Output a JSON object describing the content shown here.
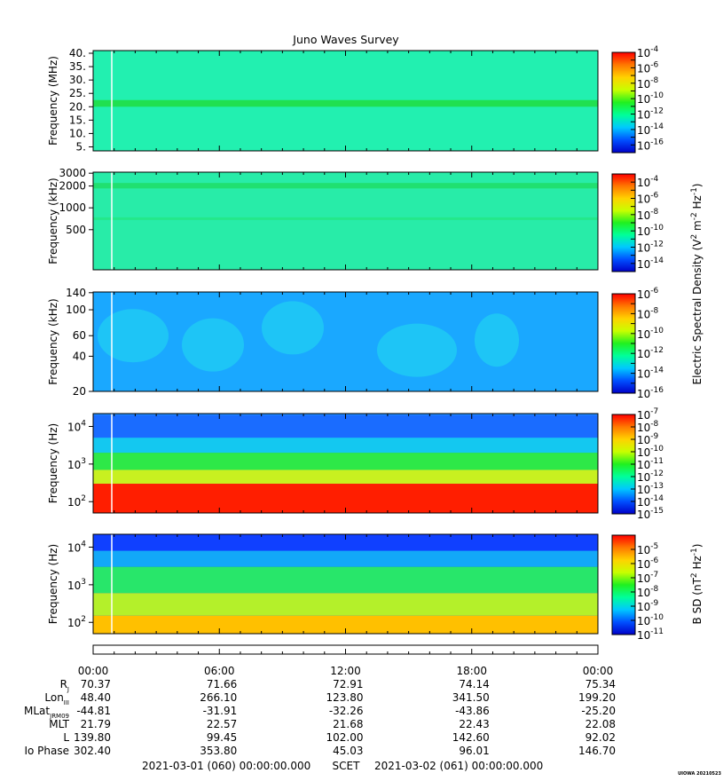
{
  "title": "Juno Waves Survey",
  "colors": {
    "colormap": [
      "#0000c8",
      "#0050ff",
      "#00c8ff",
      "#00ff9a",
      "#20f020",
      "#c8ff00",
      "#ffd200",
      "#ff7800",
      "#ff0000"
    ]
  },
  "chart_data": [
    {
      "type": "heatmap",
      "ylabel": "Frequency (MHz)",
      "yscale": "linear",
      "ylim": [
        3.5,
        41
      ],
      "yticks": [
        {
          "value": 5,
          "label": "5."
        },
        {
          "value": 10,
          "label": "10."
        },
        {
          "value": 15,
          "label": "15."
        },
        {
          "value": 20,
          "label": "20."
        },
        {
          "value": 25,
          "label": "25."
        },
        {
          "value": 30,
          "label": "30."
        },
        {
          "value": 35,
          "label": "35."
        },
        {
          "value": 40,
          "label": "40."
        }
      ],
      "colorbar": {
        "log_range": [
          -17,
          -4
        ],
        "labels": [
          {
            "exp": -4,
            "base": "10",
            "sup": "-4"
          },
          {
            "exp": -6,
            "base": "10",
            "sup": "-6"
          },
          {
            "exp": -8,
            "base": "10",
            "sup": "-8"
          },
          {
            "exp": -10,
            "base": "10",
            "sup": "-10"
          },
          {
            "exp": -12,
            "base": "10",
            "sup": "-12"
          },
          {
            "exp": -14,
            "base": "10",
            "sup": "-14"
          },
          {
            "exp": -16,
            "base": "10",
            "sup": "-16"
          }
        ]
      }
    },
    {
      "type": "heatmap",
      "ylabel": "Frequency (kHz)",
      "yscale": "log",
      "ylim": [
        140,
        3100
      ],
      "yticks": [
        {
          "value": 500,
          "label": "500"
        },
        {
          "value": 1000,
          "label": "1000"
        },
        {
          "value": 2000,
          "label": "2000"
        },
        {
          "value": 3000,
          "label": "3000"
        }
      ],
      "colorbar": {
        "log_range": [
          -15,
          -3
        ],
        "labels": [
          {
            "exp": -4,
            "base": "10",
            "sup": "-4"
          },
          {
            "exp": -6,
            "base": "10",
            "sup": "-6"
          },
          {
            "exp": -8,
            "base": "10",
            "sup": "-8"
          },
          {
            "exp": -10,
            "base": "10",
            "sup": "-10"
          },
          {
            "exp": -12,
            "base": "10",
            "sup": "-12"
          },
          {
            "exp": -14,
            "base": "10",
            "sup": "-14"
          }
        ]
      }
    },
    {
      "type": "heatmap",
      "ylabel": "Frequency (kHz)",
      "yscale": "log",
      "ylim": [
        20,
        142
      ],
      "yticks": [
        {
          "value": 20,
          "label": "20"
        },
        {
          "value": 40,
          "label": "40"
        },
        {
          "value": 60,
          "label": "60"
        },
        {
          "value": 100,
          "label": "100"
        },
        {
          "value": 140,
          "label": "140"
        }
      ],
      "colorbar": {
        "log_range": [
          -16,
          -6
        ],
        "labels": [
          {
            "exp": -6,
            "base": "10",
            "sup": "-6"
          },
          {
            "exp": -8,
            "base": "10",
            "sup": "-8"
          },
          {
            "exp": -10,
            "base": "10",
            "sup": "-10"
          },
          {
            "exp": -12,
            "base": "10",
            "sup": "-12"
          },
          {
            "exp": -14,
            "base": "10",
            "sup": "-14"
          },
          {
            "exp": -16,
            "base": "10",
            "sup": "-16"
          }
        ]
      }
    },
    {
      "type": "heatmap",
      "ylabel": "Frequency (Hz)",
      "yscale": "log",
      "ylim": [
        50,
        22000
      ],
      "yticks": [
        {
          "value": 100,
          "base": "10",
          "sup": "2"
        },
        {
          "value": 1000,
          "base": "10",
          "sup": "3"
        },
        {
          "value": 10000,
          "base": "10",
          "sup": "4"
        }
      ],
      "colorbar": {
        "log_range": [
          -15,
          -7
        ],
        "labels": [
          {
            "exp": -7,
            "base": "10",
            "sup": "-7"
          },
          {
            "exp": -8,
            "base": "10",
            "sup": "-8"
          },
          {
            "exp": -9,
            "base": "10",
            "sup": "-9"
          },
          {
            "exp": -10,
            "base": "10",
            "sup": "-10"
          },
          {
            "exp": -11,
            "base": "10",
            "sup": "-11"
          },
          {
            "exp": -12,
            "base": "10",
            "sup": "-12"
          },
          {
            "exp": -13,
            "base": "10",
            "sup": "-13"
          },
          {
            "exp": -14,
            "base": "10",
            "sup": "-14"
          },
          {
            "exp": -15,
            "base": "10",
            "sup": "-15"
          }
        ]
      }
    },
    {
      "type": "heatmap",
      "ylabel": "Frequency (Hz)",
      "yscale": "log",
      "ylim": [
        50,
        22000
      ],
      "yticks": [
        {
          "value": 100,
          "base": "10",
          "sup": "2"
        },
        {
          "value": 1000,
          "base": "10",
          "sup": "3"
        },
        {
          "value": 10000,
          "base": "10",
          "sup": "4"
        }
      ],
      "colorbar": {
        "log_range": [
          -11,
          -4
        ],
        "labels": [
          {
            "exp": -5,
            "base": "10",
            "sup": "-5"
          },
          {
            "exp": -6,
            "base": "10",
            "sup": "-6"
          },
          {
            "exp": -7,
            "base": "10",
            "sup": "-7"
          },
          {
            "exp": -8,
            "base": "10",
            "sup": "-8"
          },
          {
            "exp": -9,
            "base": "10",
            "sup": "-9"
          },
          {
            "exp": -10,
            "base": "10",
            "sup": "-10"
          },
          {
            "exp": -11,
            "base": "10",
            "sup": "-11"
          }
        ]
      }
    }
  ],
  "colorbar_titles": {
    "esd": {
      "prefix": "Electric Spectral Density (V",
      "sup1": "2",
      "mid": " m",
      "sup2": "-2",
      "mid2": " Hz",
      "sup3": "-1",
      "suffix": ")"
    },
    "bsd": {
      "prefix": "B SD (nT",
      "sup1": "2",
      "mid": " Hz",
      "sup2": "-1",
      "suffix": ")"
    }
  },
  "time_axis": {
    "tick_labels": [
      "00:00",
      "06:00",
      "12:00",
      "18:00",
      "00:00"
    ],
    "tick_hours": [
      0,
      6,
      12,
      18,
      24
    ]
  },
  "ephemeris": {
    "rows": [
      {
        "label": "R",
        "sub": "J",
        "values": [
          "70.37",
          "71.66",
          "72.91",
          "74.14",
          "75.34"
        ]
      },
      {
        "label": "Lon",
        "sub": "III",
        "values": [
          "48.40",
          "266.10",
          "123.80",
          "341.50",
          "199.20"
        ]
      },
      {
        "label": "MLat",
        "sub": "JRM09",
        "values": [
          "-44.81",
          "-31.91",
          "-32.26",
          "-43.86",
          "-25.20"
        ]
      },
      {
        "label": "MLT",
        "sub": "",
        "values": [
          "21.79",
          "22.57",
          "21.68",
          "22.43",
          "22.08"
        ]
      },
      {
        "label": "L",
        "sub": "",
        "values": [
          "139.80",
          "99.45",
          "102.00",
          "142.60",
          "92.02"
        ]
      },
      {
        "label": "Io Phase",
        "sub": "",
        "values": [
          "302.40",
          "353.80",
          "45.03",
          "96.01",
          "146.70"
        ]
      }
    ]
  },
  "footer": {
    "start": "2021-03-01 (060) 00:00:00.000",
    "scet": "SCET",
    "end": "2021-03-02 (061) 00:00:00.000",
    "credit": "UIOWA 20210523"
  }
}
